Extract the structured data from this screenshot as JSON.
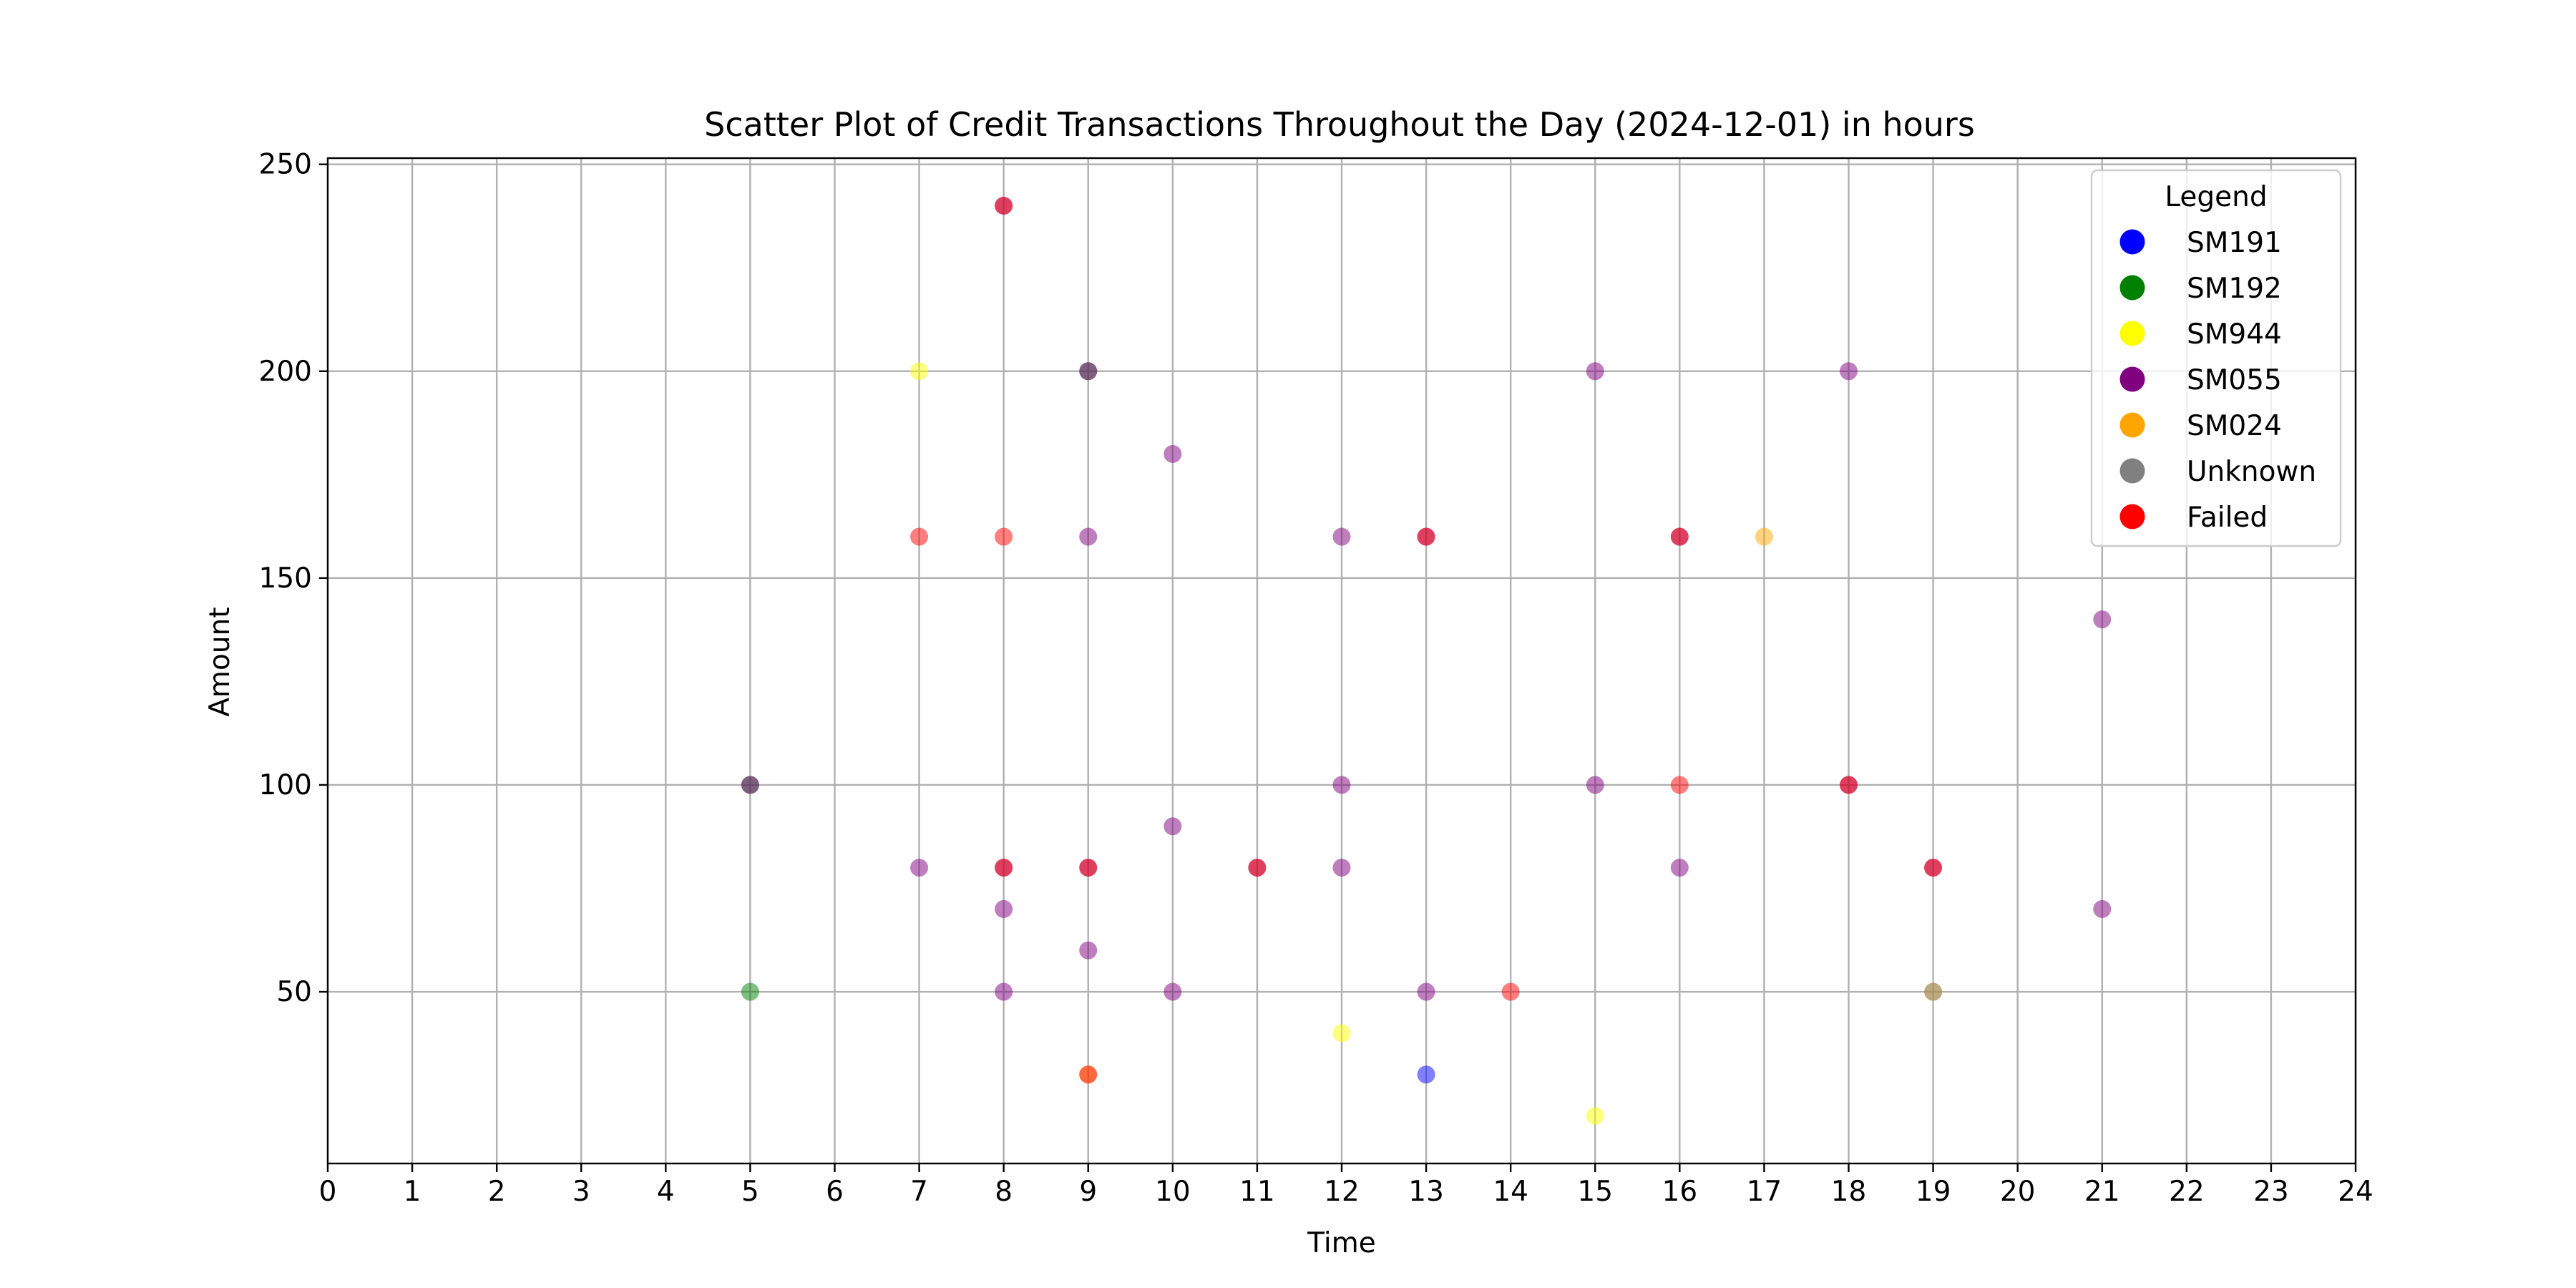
{
  "chart_data": {
    "type": "scatter",
    "title": "Scatter Plot of Credit Transactions Throughout the Day (2024-12-01) in hours",
    "xlabel": "Time",
    "ylabel": "Amount",
    "xlim": [
      0,
      24
    ],
    "ylim": [
      8.5,
      251.5
    ],
    "xticks": [
      "0",
      "1",
      "2",
      "3",
      "4",
      "5",
      "6",
      "7",
      "8",
      "9",
      "10",
      "11",
      "12",
      "13",
      "14",
      "15",
      "16",
      "17",
      "18",
      "19",
      "20",
      "21",
      "22",
      "23",
      "24"
    ],
    "yticks": [
      "50",
      "100",
      "150",
      "200",
      "250"
    ],
    "grid": true,
    "legend": {
      "title": "Legend",
      "position": "top-right",
      "entries": [
        {
          "name": "SM191",
          "color": "#0000ff"
        },
        {
          "name": "SM192",
          "color": "#008000"
        },
        {
          "name": "SM944",
          "color": "#ffff00"
        },
        {
          "name": "SM055",
          "color": "#800080"
        },
        {
          "name": "SM024",
          "color": "#ffa500"
        },
        {
          "name": "Unknown",
          "color": "#808080"
        },
        {
          "name": "Failed",
          "color": "#ff0000"
        }
      ]
    },
    "series": [
      {
        "name": "SM191",
        "color": "#0000ff",
        "points": [
          [
            13,
            30
          ]
        ]
      },
      {
        "name": "SM192",
        "color": "#008000",
        "points": [
          [
            5,
            50
          ],
          [
            5,
            100
          ],
          [
            9,
            200
          ]
        ]
      },
      {
        "name": "SM944",
        "color": "#ffff00",
        "points": [
          [
            7,
            200
          ],
          [
            12,
            40
          ],
          [
            15,
            20
          ]
        ]
      },
      {
        "name": "SM055",
        "color": "#800080",
        "points": [
          [
            5,
            100
          ],
          [
            7,
            80
          ],
          [
            8,
            240
          ],
          [
            8,
            80
          ],
          [
            8,
            70
          ],
          [
            8,
            50
          ],
          [
            9,
            200
          ],
          [
            9,
            160
          ],
          [
            9,
            80
          ],
          [
            9,
            60
          ],
          [
            10,
            180
          ],
          [
            10,
            90
          ],
          [
            10,
            50
          ],
          [
            11,
            80
          ],
          [
            12,
            160
          ],
          [
            12,
            100
          ],
          [
            12,
            80
          ],
          [
            13,
            160
          ],
          [
            13,
            50
          ],
          [
            15,
            200
          ],
          [
            15,
            100
          ],
          [
            16,
            160
          ],
          [
            16,
            80
          ],
          [
            18,
            200
          ],
          [
            18,
            100
          ],
          [
            19,
            80
          ],
          [
            21,
            140
          ],
          [
            21,
            70
          ]
        ]
      },
      {
        "name": "SM024",
        "color": "#ffa500",
        "points": [
          [
            9,
            30
          ],
          [
            17,
            160
          ],
          [
            19,
            50
          ]
        ]
      },
      {
        "name": "Unknown",
        "color": "#808080",
        "points": [
          [
            19,
            50
          ]
        ]
      },
      {
        "name": "Failed",
        "color": "#ff0000",
        "points": [
          [
            7,
            160
          ],
          [
            8,
            240
          ],
          [
            8,
            160
          ],
          [
            8,
            80
          ],
          [
            9,
            80
          ],
          [
            9,
            30
          ],
          [
            11,
            80
          ],
          [
            13,
            160
          ],
          [
            14,
            50
          ],
          [
            16,
            160
          ],
          [
            16,
            100
          ],
          [
            19,
            80
          ],
          [
            18,
            100
          ]
        ]
      }
    ]
  }
}
